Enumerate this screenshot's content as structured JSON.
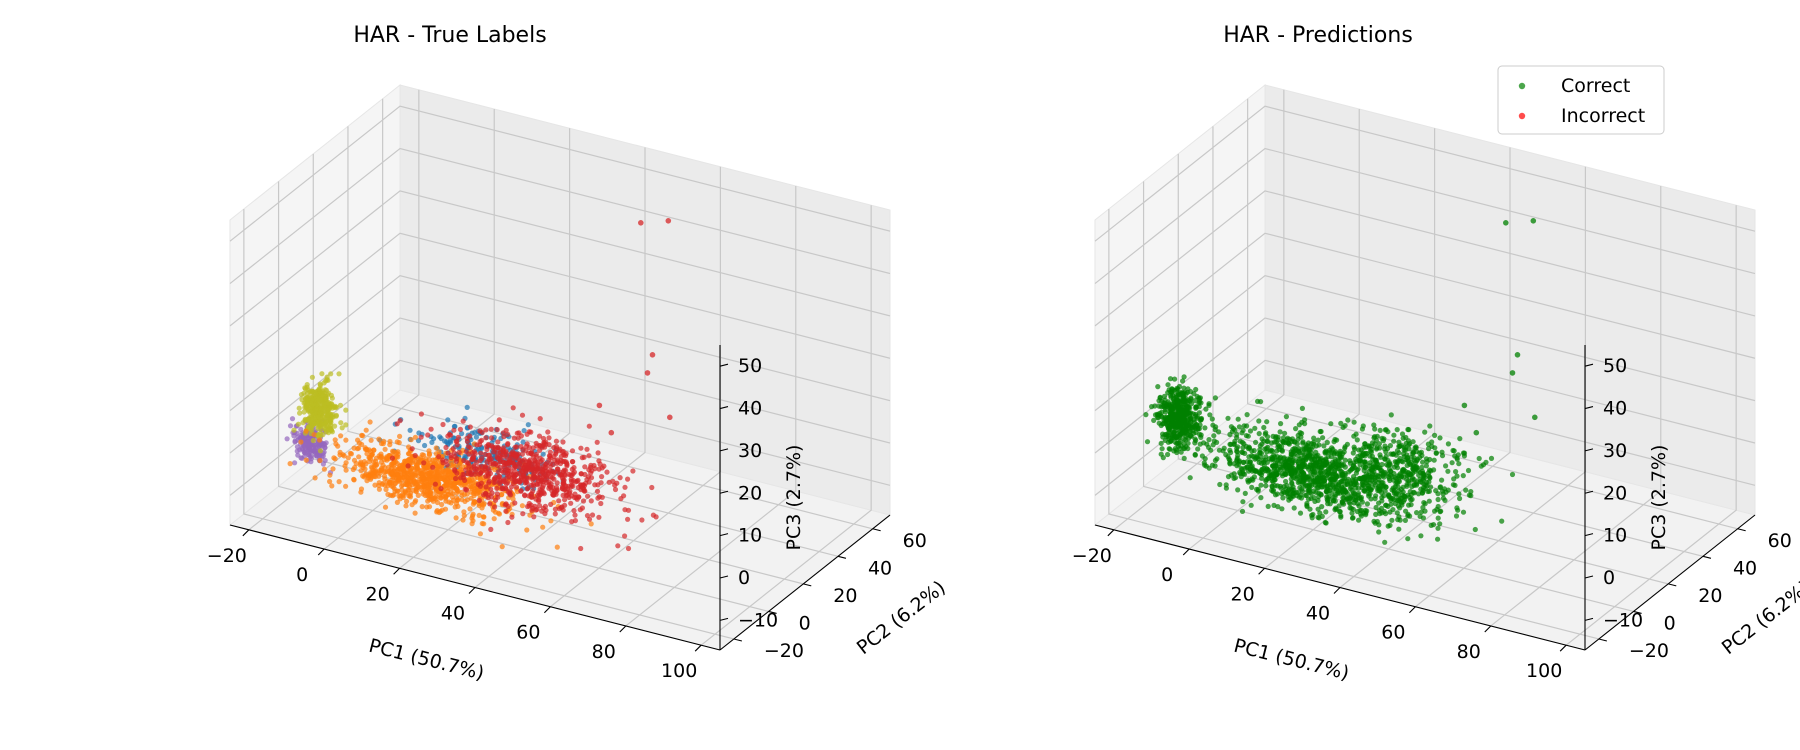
{
  "chart_data": [
    {
      "type": "scatter",
      "title": "HAR - True Labels",
      "xlabel": "PC1 (50.7%)",
      "ylabel": "PC2 (6.2%)",
      "zlabel": "PC3 (2.7%)",
      "xticks": [
        "−20",
        "0",
        "20",
        "40",
        "60",
        "80",
        "100"
      ],
      "yticks": [
        "−20",
        "0",
        "20",
        "40",
        "60"
      ],
      "zticks": [
        "−10",
        "0",
        "10",
        "20",
        "30",
        "40",
        "50"
      ],
      "xlim": [
        -25,
        105
      ],
      "ylim": [
        -28,
        70
      ],
      "zlim": [
        -17,
        55
      ],
      "grid": true,
      "colors": {
        "blue": "#1f77b4",
        "orange": "#ff7f0e",
        "red": "#d62728",
        "purple": "#9467bd",
        "olive": "#bcbd22"
      },
      "series": [
        {
          "color": "#9467bd",
          "center": [
            -18,
            3,
            -6
          ],
          "spread": [
            2,
            2,
            2
          ],
          "count": 180
        },
        {
          "color": "#bcbd22",
          "center": [
            -16,
            4,
            2
          ],
          "spread": [
            2.2,
            2.2,
            3
          ],
          "count": 320
        },
        {
          "color": "#1f77b4",
          "center": [
            30,
            2,
            2
          ],
          "spread": [
            9,
            4,
            3
          ],
          "count": 200
        },
        {
          "color": "#ff7f0e",
          "center": [
            15,
            0,
            -6
          ],
          "spread": [
            11,
            4,
            3
          ],
          "count": 900
        },
        {
          "color": "#d62728",
          "center": [
            40,
            3,
            0
          ],
          "spread": [
            11,
            5,
            4
          ],
          "count": 700
        }
      ],
      "outliers": [
        {
          "color": "#d62728",
          "points": [
            [
              55,
              35,
              52
            ],
            [
              60,
              40,
              52
            ],
            [
              65,
              20,
              28
            ],
            [
              60,
              28,
              20
            ],
            [
              65,
              30,
              10
            ],
            [
              50,
              22,
              12
            ],
            [
              55,
              18,
              8
            ]
          ]
        }
      ]
    },
    {
      "type": "scatter",
      "title": "HAR - Predictions",
      "xlabel": "PC1 (50.7%)",
      "ylabel": "PC2 (6.2%)",
      "zlabel": "PC3 (2.7%)",
      "xticks": [
        "−20",
        "0",
        "20",
        "40",
        "60",
        "80",
        "100"
      ],
      "yticks": [
        "−20",
        "0",
        "20",
        "40",
        "60"
      ],
      "zticks": [
        "−10",
        "0",
        "10",
        "20",
        "30",
        "40",
        "50"
      ],
      "xlim": [
        -25,
        105
      ],
      "ylim": [
        -28,
        70
      ],
      "zlim": [
        -17,
        55
      ],
      "grid": true,
      "legend": {
        "position": "top-right",
        "entries": [
          {
            "label": "Correct",
            "color": "#008000"
          },
          {
            "label": "Incorrect",
            "color": "#ff0000"
          }
        ]
      },
      "series": [
        {
          "name": "Correct",
          "color": "#008000",
          "center": [
            -17,
            3,
            0
          ],
          "spread": [
            2.5,
            2.5,
            3.5
          ],
          "count": 450
        },
        {
          "name": "Correct",
          "color": "#008000",
          "center": [
            20,
            1,
            -4
          ],
          "spread": [
            14,
            5,
            4
          ],
          "count": 1100
        },
        {
          "name": "Correct",
          "color": "#008000",
          "center": [
            42,
            4,
            2
          ],
          "spread": [
            10,
            5,
            4
          ],
          "count": 350
        }
      ],
      "outliers": [
        {
          "color": "#008000",
          "points": [
            [
              55,
              35,
              52
            ],
            [
              60,
              40,
              52
            ],
            [
              65,
              20,
              28
            ],
            [
              60,
              28,
              20
            ],
            [
              65,
              30,
              10
            ],
            [
              50,
              22,
              12
            ],
            [
              55,
              18,
              8
            ]
          ]
        }
      ]
    }
  ]
}
